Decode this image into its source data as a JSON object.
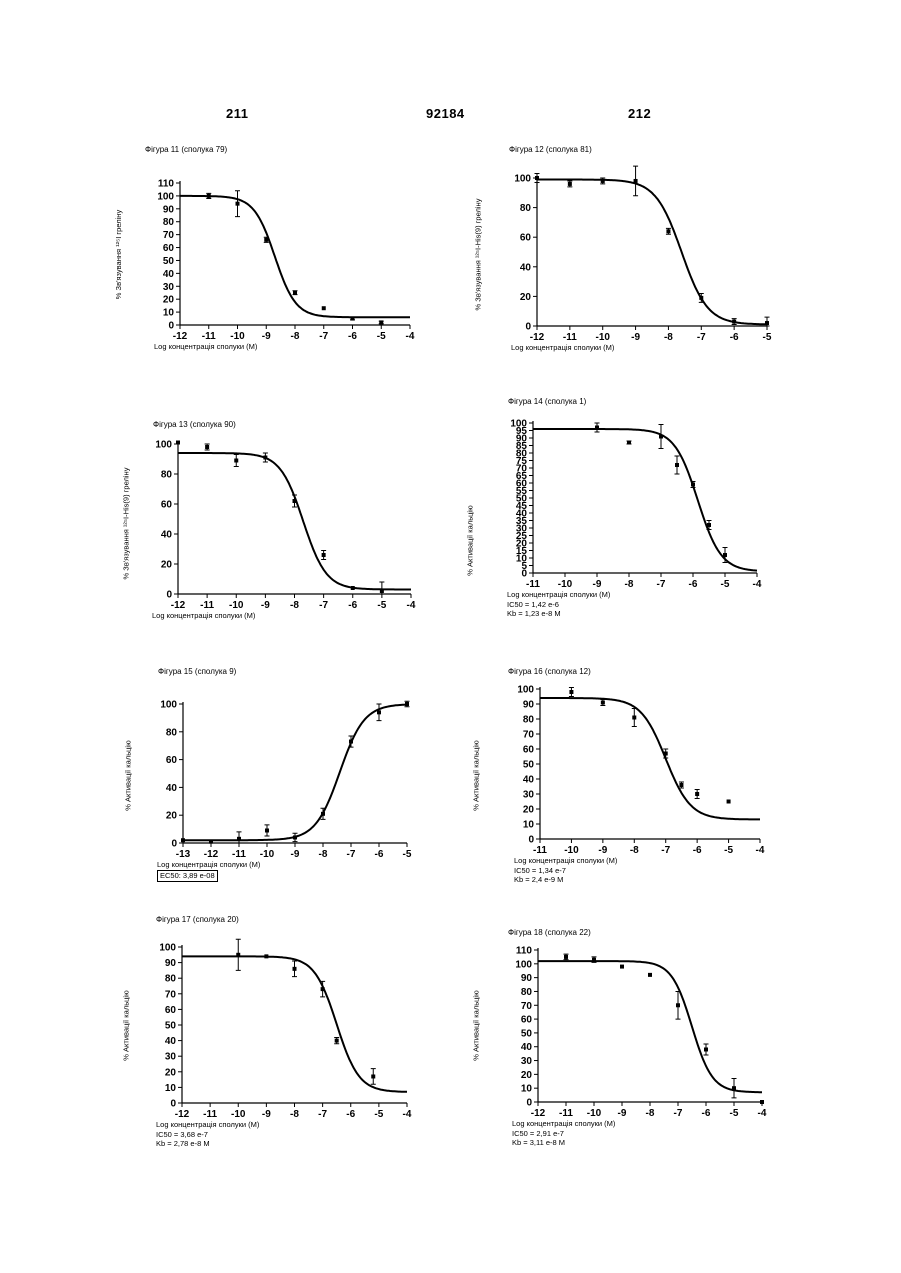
{
  "header": {
    "left": "211",
    "center": "92184",
    "right": "212"
  },
  "figures": [
    {
      "id": "fig11",
      "title": "Фігура 11 (сполука 79)",
      "xlabel": "Log концентрація сполуки (М)",
      "ylabel": "% Зв'язування ¹²⁵I греліну",
      "notes": [],
      "boxed_note": false
    },
    {
      "id": "fig12",
      "title": "Фігура 12 (сполука 81)",
      "xlabel": "Log концентрація сполуки (М)",
      "ylabel": "% Зв'язування ¹²⁵I-His(9) греліну",
      "notes": [],
      "boxed_note": false
    },
    {
      "id": "fig13",
      "title": "Фігура 13 (сполука 90)",
      "xlabel": "Log концентрація сполуки (М)",
      "ylabel": "% Зв'язування ¹²⁵I-His(9) греліну",
      "notes": [],
      "boxed_note": false
    },
    {
      "id": "fig14",
      "title": "Фігура 14 (сполука 1)",
      "xlabel": "Log концентрація сполуки (М)",
      "ylabel": "% Активації кальцію",
      "notes": [
        "IC50 = 1,42 e-6",
        "Kb = 1,23 e-8 M"
      ],
      "boxed_note": false
    },
    {
      "id": "fig15",
      "title": "Фігура 15 (сполука 9)",
      "xlabel": "Log концентрація сполуки (М)",
      "ylabel": "% Активації кальцію",
      "notes": [
        "EC50: 3,89 e-08"
      ],
      "boxed_note": true
    },
    {
      "id": "fig16",
      "title": "Фігура 16 (сполука 12)",
      "xlabel": "Log концентрація сполуки (М)",
      "ylabel": "% Активації кальцію",
      "notes": [
        "IC50 = 1,34 e-7",
        "Kb = 2,4 e-9 M"
      ],
      "boxed_note": false
    },
    {
      "id": "fig17",
      "title": "Фігура 17 (сполука 20)",
      "xlabel": "Log концентрація сполуки (М)",
      "ylabel": "% Активації кальцію",
      "notes": [
        "IC50 = 3,68 e-7",
        "Kb = 2,78 e-8 M"
      ],
      "boxed_note": false
    },
    {
      "id": "fig18",
      "title": "Фігура 18 (сполука 22)",
      "xlabel": "Log концентрація сполуки (М)",
      "ylabel": "% Активації кальцію",
      "notes": [
        "IC50 = 2,91 e-7",
        "Kb = 3,11 e-8 M"
      ],
      "boxed_note": false
    }
  ],
  "chart_data": [
    {
      "type": "scatter",
      "title": "Фігура 11 (сполука 79)",
      "xlabel": "Log концентрація сполуки (М)",
      "ylabel": "% Зв'язування ¹²⁵I греліну",
      "xlim": [
        -12,
        -4
      ],
      "ylim": [
        0,
        110
      ],
      "xticks": [
        -12,
        -11,
        -10,
        -9,
        -8,
        -7,
        -6,
        -5,
        -4
      ],
      "yticks": [
        0,
        10,
        20,
        30,
        40,
        50,
        60,
        70,
        80,
        90,
        100,
        110
      ],
      "points": [
        {
          "x": -11,
          "y": 100,
          "err": 2
        },
        {
          "x": -10,
          "y": 94,
          "err": 10
        },
        {
          "x": -9,
          "y": 66,
          "err": 2
        },
        {
          "x": -8,
          "y": 25,
          "err": 1.5
        },
        {
          "x": -7,
          "y": 13,
          "err": 0
        },
        {
          "x": -6,
          "y": 5,
          "err": 1
        },
        {
          "x": -5,
          "y": 2,
          "err": 1
        }
      ],
      "fit": {
        "top": 100,
        "bottom": 6,
        "log_mid": -8.7,
        "hill": -1.2
      }
    },
    {
      "type": "scatter",
      "title": "Фігура 12 (сполука 81)",
      "xlabel": "Log концентрація сполуки (М)",
      "ylabel": "% Зв'язування ¹²⁵I-His(9) греліну",
      "xlim": [
        -12,
        -5
      ],
      "ylim": [
        0,
        100
      ],
      "xticks": [
        -12,
        -11,
        -10,
        -9,
        -8,
        -7,
        -6,
        -5
      ],
      "yticks": [
        0,
        20,
        40,
        60,
        80,
        100
      ],
      "points": [
        {
          "x": -12,
          "y": 100,
          "err": 3
        },
        {
          "x": -11,
          "y": 96,
          "err": 2
        },
        {
          "x": -10,
          "y": 98,
          "err": 2
        },
        {
          "x": -9,
          "y": 98,
          "err": 10
        },
        {
          "x": -8,
          "y": 64,
          "err": 2
        },
        {
          "x": -7,
          "y": 19,
          "err": 3
        },
        {
          "x": -6,
          "y": 3,
          "err": 2
        },
        {
          "x": -5,
          "y": 2,
          "err": 4
        }
      ],
      "fit": {
        "top": 99,
        "bottom": 1,
        "log_mid": -7.6,
        "hill": -1.1
      }
    },
    {
      "type": "scatter",
      "title": "Фігура 13 (сполука 90)",
      "xlabel": "Log концентрація сполуки (М)",
      "ylabel": "% Зв'язування ¹²⁵I-His(9) греліну",
      "xlim": [
        -12,
        -4
      ],
      "ylim": [
        0,
        100
      ],
      "xticks": [
        -12,
        -11,
        -10,
        -9,
        -8,
        -7,
        -6,
        -5,
        -4
      ],
      "yticks": [
        0,
        20,
        40,
        60,
        80,
        100
      ],
      "points": [
        {
          "x": -12,
          "y": 101,
          "err": 0
        },
        {
          "x": -11,
          "y": 98,
          "err": 2
        },
        {
          "x": -10,
          "y": 89,
          "err": 4
        },
        {
          "x": -9,
          "y": 91,
          "err": 3
        },
        {
          "x": -8,
          "y": 62,
          "err": 4
        },
        {
          "x": -7,
          "y": 26,
          "err": 3
        },
        {
          "x": -6,
          "y": 4,
          "err": 0
        },
        {
          "x": -5,
          "y": 2,
          "err": 6
        }
      ],
      "fit": {
        "top": 94,
        "bottom": 3,
        "log_mid": -7.7,
        "hill": -1.1
      }
    },
    {
      "type": "scatter",
      "title": "Фігура 14 (сполука 1)",
      "xlabel": "Log концентрація сполуки (М)",
      "ylabel": "% Активації кальцію",
      "xlim": [
        -11,
        -4
      ],
      "ylim": [
        0,
        100
      ],
      "xticks": [
        -11,
        -10,
        -9,
        -8,
        -7,
        -6,
        -5,
        -4
      ],
      "yticks": [
        0,
        5,
        10,
        15,
        20,
        25,
        30,
        35,
        40,
        45,
        50,
        55,
        60,
        65,
        70,
        75,
        80,
        85,
        90,
        95,
        100
      ],
      "points": [
        {
          "x": -9,
          "y": 97,
          "err": 3
        },
        {
          "x": -8,
          "y": 87,
          "err": 1
        },
        {
          "x": -7,
          "y": 91,
          "err": 8
        },
        {
          "x": -6.5,
          "y": 72,
          "err": 6
        },
        {
          "x": -6,
          "y": 59,
          "err": 2
        },
        {
          "x": -5.5,
          "y": 32,
          "err": 3
        },
        {
          "x": -5,
          "y": 12,
          "err": 5
        }
      ],
      "fit": {
        "top": 96,
        "bottom": 1,
        "log_mid": -5.85,
        "hill": -1.2
      }
    },
    {
      "type": "scatter",
      "title": "Фігура 15 (сполука 9)",
      "xlabel": "Log концентрація сполуки (М)",
      "ylabel": "% Активації кальцію",
      "xlim": [
        -13,
        -5
      ],
      "ylim": [
        0,
        100
      ],
      "xticks": [
        -13,
        -12,
        -11,
        -10,
        -9,
        -8,
        -7,
        -6,
        -5
      ],
      "yticks": [
        0,
        20,
        40,
        60,
        80,
        100
      ],
      "points": [
        {
          "x": -13,
          "y": 2,
          "err": 0
        },
        {
          "x": -12,
          "y": 1,
          "err": 0
        },
        {
          "x": -11,
          "y": 3,
          "err": 5
        },
        {
          "x": -10,
          "y": 9,
          "err": 4
        },
        {
          "x": -9,
          "y": 4,
          "err": 3
        },
        {
          "x": -8,
          "y": 21,
          "err": 4
        },
        {
          "x": -7,
          "y": 73,
          "err": 4
        },
        {
          "x": -6,
          "y": 94,
          "err": 6
        },
        {
          "x": -5,
          "y": 100,
          "err": 2
        }
      ],
      "fit": {
        "top": 100,
        "bottom": 2,
        "log_mid": -7.4,
        "hill": 1.0
      }
    },
    {
      "type": "scatter",
      "title": "Фігура 16 (сполука 12)",
      "xlabel": "Log концентрація сполуки (М)",
      "ylabel": "% Активації кальцію",
      "xlim": [
        -11,
        -4
      ],
      "ylim": [
        0,
        100
      ],
      "xticks": [
        -11,
        -10,
        -9,
        -8,
        -7,
        -6,
        -5,
        -4
      ],
      "yticks": [
        0,
        10,
        20,
        30,
        40,
        50,
        60,
        70,
        80,
        90,
        100
      ],
      "points": [
        {
          "x": -10,
          "y": 98,
          "err": 3
        },
        {
          "x": -9,
          "y": 91,
          "err": 2
        },
        {
          "x": -8,
          "y": 81,
          "err": 6
        },
        {
          "x": -7,
          "y": 57,
          "err": 3
        },
        {
          "x": -6.5,
          "y": 36,
          "err": 2
        },
        {
          "x": -6,
          "y": 30,
          "err": 3
        },
        {
          "x": -5,
          "y": 25,
          "err": 0
        }
      ],
      "fit": {
        "top": 94,
        "bottom": 13,
        "log_mid": -7.0,
        "hill": -1.1
      }
    },
    {
      "type": "scatter",
      "title": "Фігура 17 (сполука 20)",
      "xlabel": "Log концентрація сполуки (М)",
      "ylabel": "% Активації кальцію",
      "xlim": [
        -12,
        -4
      ],
      "ylim": [
        0,
        100
      ],
      "xticks": [
        -12,
        -11,
        -10,
        -9,
        -8,
        -7,
        -6,
        -5,
        -4
      ],
      "yticks": [
        0,
        10,
        20,
        30,
        40,
        50,
        60,
        70,
        80,
        90,
        100
      ],
      "points": [
        {
          "x": -10,
          "y": 95,
          "err": 10
        },
        {
          "x": -9,
          "y": 94,
          "err": 0
        },
        {
          "x": -8,
          "y": 86,
          "err": 5
        },
        {
          "x": -7,
          "y": 73,
          "err": 5
        },
        {
          "x": -6.5,
          "y": 40,
          "err": 2
        },
        {
          "x": -5.2,
          "y": 17,
          "err": 5
        }
      ],
      "fit": {
        "top": 94,
        "bottom": 7,
        "log_mid": -6.5,
        "hill": -1.1
      }
    },
    {
      "type": "scatter",
      "title": "Фігура 18 (сполука 22)",
      "xlabel": "Log концентрація сполуки (М)",
      "ylabel": "% Активації кальцію",
      "xlim": [
        -12,
        -4
      ],
      "ylim": [
        0,
        110
      ],
      "xticks": [
        -12,
        -11,
        -10,
        -9,
        -8,
        -7,
        -6,
        -5,
        -4
      ],
      "yticks": [
        0,
        10,
        20,
        30,
        40,
        50,
        60,
        70,
        80,
        90,
        100,
        110
      ],
      "points": [
        {
          "x": -11,
          "y": 105,
          "err": 2
        },
        {
          "x": -10,
          "y": 103,
          "err": 2
        },
        {
          "x": -9,
          "y": 98,
          "err": 0
        },
        {
          "x": -8,
          "y": 92,
          "err": 0
        },
        {
          "x": -7,
          "y": 70,
          "err": 10
        },
        {
          "x": -6,
          "y": 38,
          "err": 4
        },
        {
          "x": -5,
          "y": 10,
          "err": 7
        },
        {
          "x": -4,
          "y": 0,
          "err": 0
        }
      ],
      "fit": {
        "top": 102,
        "bottom": 7,
        "log_mid": -6.5,
        "hill": -1.2
      }
    }
  ]
}
